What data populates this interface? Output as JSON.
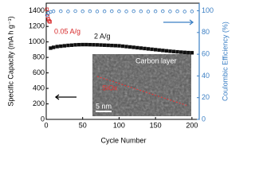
{
  "chart_data": {
    "type": "scatter",
    "x_label": "Cycle Number",
    "y_label": "Specific Capacity (mA h g⁻¹)",
    "y2_label": "Coulombic Efficiency (%)",
    "xlim": [
      0,
      210
    ],
    "xticks": [
      0,
      50,
      100,
      150,
      200
    ],
    "ylim": [
      0,
      1500
    ],
    "yticks": [
      0,
      200,
      400,
      600,
      800,
      1000,
      1200,
      1400
    ],
    "y2lim": [
      0,
      107
    ],
    "y2ticks": [
      0,
      20,
      40,
      60,
      80,
      100
    ],
    "annotations": [
      "0.05 A/g",
      "2 A/g"
    ],
    "inset": {
      "labels": [
        "Carbon layer",
        "SiOx",
        "5 nm"
      ]
    },
    "series": [
      {
        "name": "0.05 A/g",
        "color": "#d62728",
        "marker": "open-square",
        "x": [
          1,
          2,
          3,
          4,
          5
        ],
        "values": [
          1420,
          1330,
          1290,
          1270,
          1260
        ]
      },
      {
        "name": "2 A/g",
        "color": "#111111",
        "marker": "square",
        "x": [
          6,
          10,
          15,
          20,
          25,
          30,
          35,
          40,
          45,
          50,
          55,
          60,
          65,
          70,
          75,
          80,
          85,
          90,
          95,
          100,
          105,
          110,
          115,
          120,
          125,
          130,
          135,
          140,
          145,
          150,
          155,
          160,
          165,
          170,
          175,
          180,
          185,
          190,
          195,
          200
        ],
        "values": [
          920,
          930,
          940,
          945,
          950,
          955,
          958,
          962,
          964,
          965,
          965,
          964,
          963,
          962,
          960,
          958,
          956,
          954,
          952,
          950,
          945,
          940,
          935,
          930,
          925,
          920,
          915,
          910,
          905,
          900,
          895,
          890,
          885,
          880,
          876,
          872,
          868,
          865,
          862,
          860
        ]
      },
      {
        "name": "Coulombic Efficiency",
        "color": "#3b7fc4",
        "marker": "open-circle",
        "axis": "y2",
        "x": [
          1,
          3,
          6,
          10,
          20,
          30,
          40,
          50,
          60,
          70,
          80,
          90,
          100,
          110,
          120,
          130,
          140,
          150,
          160,
          170,
          180,
          190,
          200
        ],
        "values": [
          96,
          98,
          99,
          99.5,
          99.6,
          99.4,
          99.7,
          99.5,
          99.6,
          99.4,
          99.5,
          99.6,
          99.5,
          99.4,
          99.6,
          99.5,
          99.3,
          99.5,
          99.6,
          99.4,
          99.5,
          99.3,
          99.4
        ]
      }
    ]
  }
}
